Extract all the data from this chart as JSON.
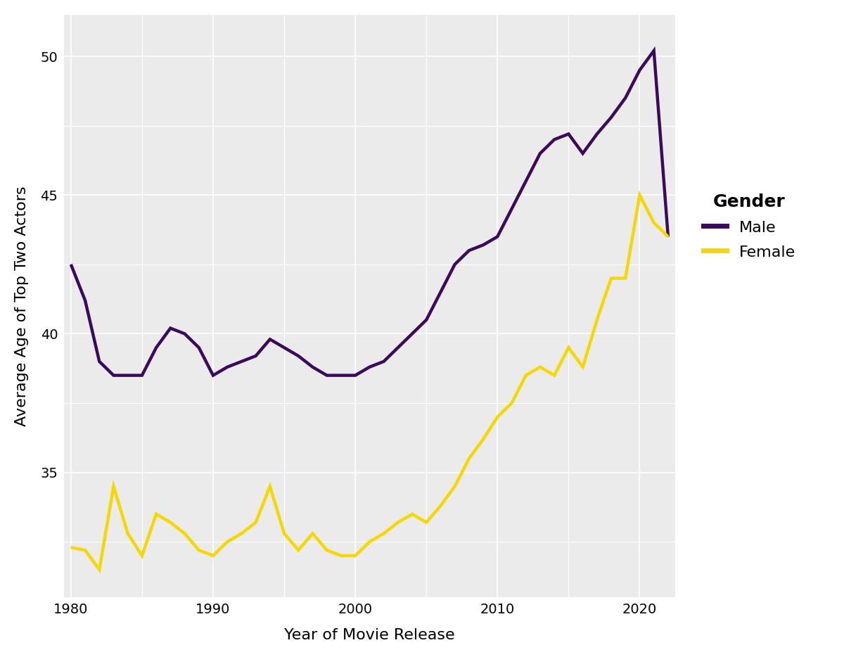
{
  "years": [
    1980,
    1981,
    1982,
    1983,
    1984,
    1985,
    1986,
    1987,
    1988,
    1989,
    1990,
    1991,
    1992,
    1993,
    1994,
    1995,
    1996,
    1997,
    1998,
    1999,
    2000,
    2001,
    2002,
    2003,
    2004,
    2005,
    2006,
    2007,
    2008,
    2009,
    2010,
    2011,
    2012,
    2013,
    2014,
    2015,
    2016,
    2017,
    2018,
    2019,
    2020,
    2021,
    2022
  ],
  "male": [
    42.5,
    41.2,
    39.0,
    38.5,
    38.5,
    38.5,
    39.5,
    40.2,
    40.0,
    39.5,
    38.5,
    38.8,
    39.0,
    39.2,
    39.8,
    39.5,
    39.2,
    38.8,
    38.5,
    38.5,
    38.5,
    38.8,
    39.0,
    39.5,
    40.0,
    40.5,
    41.5,
    42.5,
    43.0,
    43.2,
    43.5,
    44.5,
    45.5,
    46.5,
    47.0,
    47.2,
    46.5,
    47.2,
    47.8,
    48.5,
    49.5,
    50.2,
    43.5
  ],
  "female": [
    32.3,
    32.2,
    31.5,
    34.5,
    32.8,
    32.0,
    33.5,
    33.2,
    32.8,
    32.2,
    32.0,
    32.5,
    32.8,
    33.2,
    34.5,
    32.8,
    32.2,
    32.8,
    32.2,
    32.0,
    32.0,
    32.5,
    32.8,
    33.2,
    33.5,
    33.2,
    33.8,
    34.5,
    35.5,
    36.2,
    37.0,
    37.5,
    38.5,
    38.8,
    38.5,
    39.5,
    38.8,
    40.5,
    42.0,
    42.0,
    45.0,
    44.0,
    43.5
  ],
  "male_color": "#3B0A5C",
  "female_color": "#F5D800",
  "xlabel": "Year of Movie Release",
  "ylabel": "Average Age of Top Two Actors",
  "legend_title": "Gender",
  "legend_male": "Male",
  "legend_female": "Female",
  "xlim": [
    1979.5,
    2022.5
  ],
  "ylim": [
    30.5,
    51.5
  ],
  "xticks": [
    1980,
    1990,
    2000,
    2010,
    2020
  ],
  "yticks": [
    35,
    40,
    45,
    50
  ],
  "background_color": "#FFFFFF",
  "panel_color": "#EBEBEB",
  "grid_color": "#FFFFFF",
  "line_width": 3.2,
  "label_fontsize": 16,
  "tick_fontsize": 14,
  "legend_fontsize": 16,
  "legend_title_fontsize": 18
}
